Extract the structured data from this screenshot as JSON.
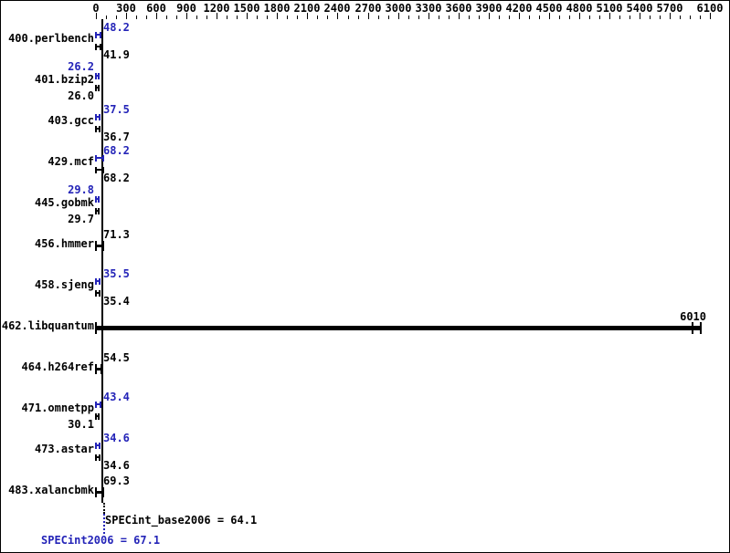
{
  "chart_data": {
    "type": "bar",
    "orientation": "horizontal",
    "x_axis": {
      "min": 0,
      "max": 6100,
      "minor_step": 100,
      "major_step": 300,
      "major_tick_values": [
        0,
        300,
        600,
        900,
        1200,
        1500,
        1800,
        2100,
        2400,
        2700,
        3000,
        3300,
        3600,
        3900,
        4200,
        4500,
        4800,
        5100,
        5400,
        5700,
        6100
      ],
      "major_tick_labels": [
        "0",
        "300",
        "600",
        "900",
        "1200",
        "1500",
        "1800",
        "2100",
        "2400",
        "2700",
        "3000",
        "3300",
        "3600",
        "3900",
        "4200",
        "4500",
        "4800",
        "5100",
        "5400",
        "5700",
        "6100"
      ]
    },
    "colors": {
      "base": "#000000",
      "peak": "#2424b8"
    },
    "benchmarks": [
      {
        "name": "400.perlbench",
        "peak": 48.2,
        "base": 41.9,
        "peak_label": "48.2",
        "base_label": "41.9",
        "peak_side": "right",
        "base_side": "right",
        "single": false
      },
      {
        "name": "401.bzip2",
        "peak": 26.2,
        "base": 26.0,
        "peak_label": "26.2",
        "base_label": "26.0",
        "peak_side": "left",
        "base_side": "left",
        "single": false
      },
      {
        "name": "403.gcc",
        "peak": 37.5,
        "base": 36.7,
        "peak_label": "37.5",
        "base_label": "36.7",
        "peak_side": "right",
        "base_side": "right",
        "single": false
      },
      {
        "name": "429.mcf",
        "peak": 68.2,
        "base": 68.2,
        "peak_label": "68.2",
        "base_label": "68.2",
        "peak_side": "right",
        "base_side": "right",
        "single": false
      },
      {
        "name": "445.gobmk",
        "peak": 29.8,
        "base": 29.7,
        "peak_label": "29.8",
        "base_label": "29.7",
        "peak_side": "left",
        "base_side": "left",
        "single": false
      },
      {
        "name": "456.hmmer",
        "base": 71.3,
        "base_label": "71.3",
        "single": true
      },
      {
        "name": "458.sjeng",
        "peak": 35.5,
        "base": 35.4,
        "peak_label": "35.5",
        "base_label": "35.4",
        "peak_side": "right",
        "base_side": "right",
        "single": false
      },
      {
        "name": "462.libquantum",
        "base": 6010,
        "base_label": "6010",
        "single": true,
        "thick": true,
        "label_at_end": true
      },
      {
        "name": "464.h264ref",
        "base": 54.5,
        "base_label": "54.5",
        "single": true
      },
      {
        "name": "471.omnetpp",
        "peak": 43.4,
        "base": 30.1,
        "peak_label": "43.4",
        "base_label": "30.1",
        "peak_side": "right",
        "base_side": "left",
        "single": false
      },
      {
        "name": "473.astar",
        "peak": 34.6,
        "base": 34.6,
        "peak_label": "34.6",
        "base_label": "34.6",
        "peak_side": "right",
        "base_side": "right",
        "single": false
      },
      {
        "name": "483.xalancbmk",
        "base": 69.3,
        "base_label": "69.3",
        "single": true
      }
    ],
    "summary": {
      "base_text": "SPECint_base2006 = 64.1",
      "peak_text": "SPECint2006 = 67.1",
      "base_value": 64.1,
      "peak_value": 67.1
    }
  }
}
